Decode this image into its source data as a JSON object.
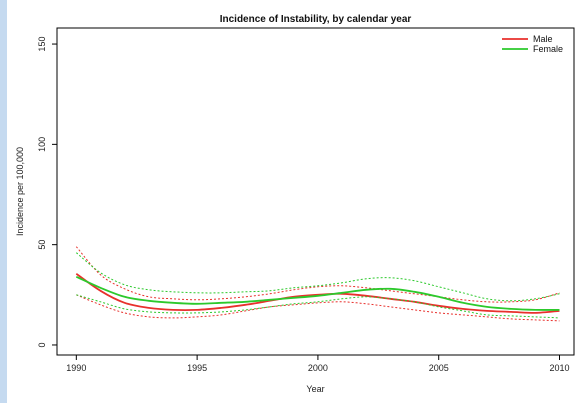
{
  "chart_data": {
    "type": "line",
    "title": "Incidence of Instability, by calendar year",
    "xlabel": "Year",
    "ylabel": "Incidence per 100,000",
    "xlim": [
      1989.2,
      2010.6
    ],
    "ylim": [
      -5,
      158
    ],
    "x_ticks": [
      1990,
      1995,
      2000,
      2005,
      2010
    ],
    "y_ticks": [
      0,
      50,
      100,
      150
    ],
    "grid": false,
    "legend": "top-right",
    "x": [
      1990,
      1991,
      1992,
      1993,
      1994,
      1995,
      1996,
      1997,
      1998,
      1999,
      2000,
      2001,
      2002,
      2003,
      2004,
      2005,
      2006,
      2007,
      2008,
      2009,
      2010
    ],
    "series": [
      {
        "name": "Male",
        "color": "#e8302c",
        "values": [
          35.5,
          27,
          21,
          18.5,
          17.5,
          17.5,
          18.5,
          20,
          22,
          24,
          25,
          25.5,
          24.5,
          23,
          21.5,
          19.5,
          18,
          17,
          16.5,
          16,
          17
        ],
        "lower": [
          25,
          20,
          16,
          14,
          13.5,
          14,
          15,
          17,
          19,
          20,
          21,
          21.5,
          20.5,
          19,
          17.5,
          16,
          15,
          14,
          13,
          12.5,
          12
        ],
        "upper": [
          49,
          35,
          28,
          24,
          23,
          22.5,
          23,
          24,
          25.5,
          27.5,
          29,
          29.5,
          28.5,
          27,
          25.5,
          24,
          22.5,
          21.5,
          21.5,
          22.5,
          26
        ]
      },
      {
        "name": "Female",
        "color": "#2cc92c",
        "values": [
          34,
          28.5,
          24,
          22,
          21,
          20.5,
          21,
          21.5,
          22.5,
          23.5,
          24.5,
          26,
          27.5,
          28,
          26.5,
          24,
          21,
          19,
          18,
          17.5,
          17.5
        ],
        "lower": [
          25,
          21.5,
          18,
          16.5,
          16,
          16,
          16.5,
          17.5,
          19,
          20.5,
          21.5,
          23,
          24,
          23,
          21.5,
          19,
          17,
          15,
          14.5,
          14,
          13.5
        ],
        "upper": [
          46,
          36,
          30,
          27.5,
          26.5,
          26,
          26,
          26.5,
          27,
          28.5,
          29.5,
          31,
          33,
          33.5,
          32,
          29,
          26,
          23,
          22,
          23,
          25.5
        ]
      }
    ]
  }
}
